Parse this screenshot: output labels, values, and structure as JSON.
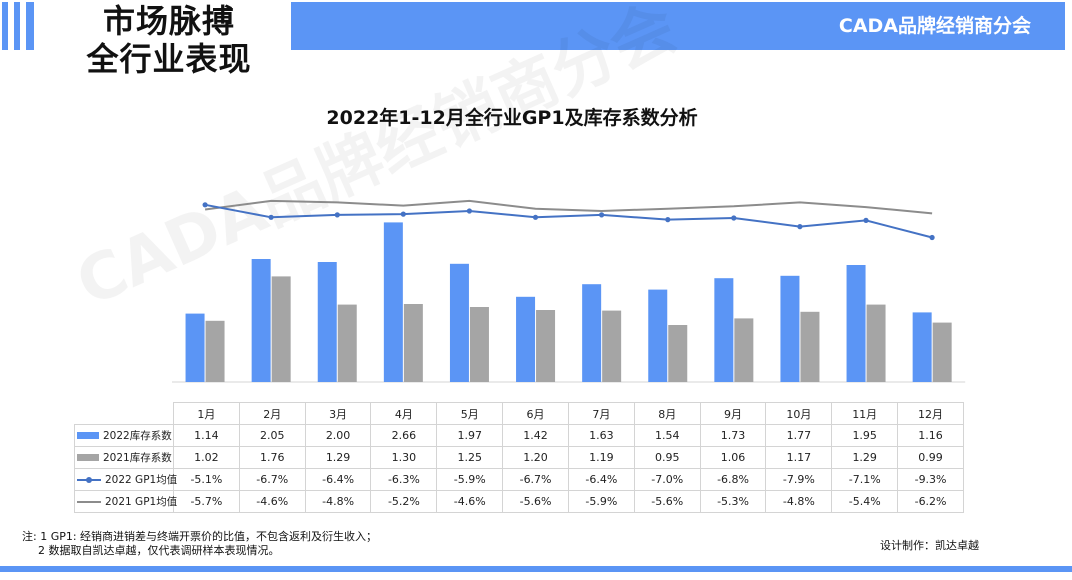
{
  "header": {
    "title_line1": "市场脉搏",
    "title_line2": "全行业表现",
    "brand": "CADA品牌经销商分会"
  },
  "watermark": "CADA品牌经销商分会",
  "colors": {
    "accent": "#5b95f5",
    "bar_2022": "#5b95f5",
    "bar_2021": "#a5a5a5",
    "line_2022": "#4472c4",
    "line_2021": "#8c8c8c"
  },
  "chart_data": {
    "type": "bar",
    "title": "2022年1-12月全行业GP1及库存系数分析",
    "categories": [
      "1月",
      "2月",
      "3月",
      "4月",
      "5月",
      "6月",
      "7月",
      "8月",
      "9月",
      "10月",
      "11月",
      "12月"
    ],
    "series": [
      {
        "name": "2022库存系数",
        "type": "bar",
        "color": "#5b95f5",
        "values": [
          1.14,
          2.05,
          2.0,
          2.66,
          1.97,
          1.42,
          1.63,
          1.54,
          1.73,
          1.77,
          1.95,
          1.16
        ],
        "labels": [
          "1.14",
          "2.05",
          "2.00",
          "2.66",
          "1.97",
          "1.42",
          "1.63",
          "1.54",
          "1.73",
          "1.77",
          "1.95",
          "1.16"
        ]
      },
      {
        "name": "2021库存系数",
        "type": "bar",
        "color": "#a5a5a5",
        "values": [
          1.02,
          1.76,
          1.29,
          1.3,
          1.25,
          1.2,
          1.19,
          0.95,
          1.06,
          1.17,
          1.29,
          0.99
        ],
        "labels": [
          "1.02",
          "1.76",
          "1.29",
          "1.30",
          "1.25",
          "1.20",
          "1.19",
          "0.95",
          "1.06",
          "1.17",
          "1.29",
          "0.99"
        ]
      },
      {
        "name": "2022 GP1均值",
        "type": "line",
        "marker": "circle",
        "color": "#4472c4",
        "values": [
          -5.1,
          -6.7,
          -6.4,
          -6.3,
          -5.9,
          -6.7,
          -6.4,
          -7.0,
          -6.8,
          -7.9,
          -7.1,
          -9.3
        ],
        "labels": [
          "-5.1%",
          "-6.7%",
          "-6.4%",
          "-6.3%",
          "-5.9%",
          "-6.7%",
          "-6.4%",
          "-7.0%",
          "-6.8%",
          "-7.9%",
          "-7.1%",
          "-9.3%"
        ]
      },
      {
        "name": "2021 GP1均值",
        "type": "line",
        "marker": "none",
        "color": "#8c8c8c",
        "values": [
          -5.7,
          -4.6,
          -4.8,
          -5.2,
          -4.6,
          -5.6,
          -5.9,
          -5.6,
          -5.3,
          -4.8,
          -5.4,
          -6.2
        ],
        "labels": [
          "-5.7%",
          "-4.6%",
          "-4.8%",
          "-5.2%",
          "-4.6%",
          "-5.6%",
          "-5.9%",
          "-5.6%",
          "-5.3%",
          "-4.8%",
          "-5.4%",
          "-6.2%"
        ]
      }
    ],
    "ylim_bars": [
      0,
      3
    ],
    "ylim_lines": [
      -22,
      -3
    ],
    "grid": false,
    "legend": "data-table"
  },
  "footnote": {
    "line1": "注: 1 GP1: 经销商进销差与终端开票价的比值，不包含返利及衍生收入；",
    "line2": "2 数据取自凯达卓越，仅代表调研样本表现情况。"
  },
  "designer": "设计制作：凯达卓越"
}
